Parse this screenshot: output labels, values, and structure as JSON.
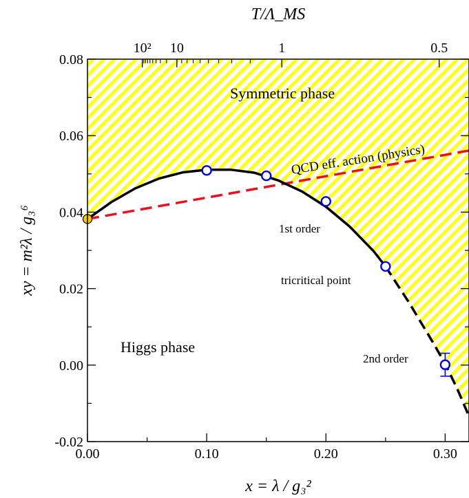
{
  "chart_data": {
    "type": "line",
    "xlabel": "x = λ / g₃²",
    "ylabel": "xy = m²λ / g₃⁶",
    "top_axis_label": "T/Λ_MS",
    "xlim": [
      0.0,
      0.32
    ],
    "ylim": [
      -0.02,
      0.08
    ],
    "x_ticks": [
      0.0,
      0.1,
      0.2,
      0.3
    ],
    "x_tick_labels": [
      "0.00",
      "0.10",
      "0.20",
      "0.30"
    ],
    "y_ticks": [
      -0.02,
      0.0,
      0.02,
      0.04,
      0.06,
      0.08
    ],
    "y_tick_labels": [
      "-0.02",
      "0.00",
      "0.02",
      "0.04",
      "0.06",
      "0.08"
    ],
    "top_ticks": [
      {
        "label": "10²",
        "x": 0.046
      },
      {
        "label": "10",
        "x": 0.075
      },
      {
        "label": "1",
        "x": 0.163
      },
      {
        "label": "0.5",
        "x": 0.295
      }
    ],
    "regions": {
      "symmetric": "Symmetric phase",
      "higgs": "Higgs phase"
    },
    "annotations": {
      "qcd": "QCD eff. action (physics)",
      "first_order": "1st order",
      "tricritical": "tricritical point",
      "second_order": "2nd order"
    },
    "series": [
      {
        "style": "solid-black",
        "x": [
          0.0,
          0.02,
          0.04,
          0.06,
          0.08,
          0.1,
          0.12,
          0.14,
          0.16,
          0.18,
          0.2,
          0.22,
          0.24,
          0.25
        ],
        "y": [
          0.0382,
          0.0426,
          0.0462,
          0.0488,
          0.0504,
          0.0511,
          0.0511,
          0.0503,
          0.0483,
          0.0454,
          0.0414,
          0.0362,
          0.0298,
          0.0258
        ]
      },
      {
        "style": "dashed-black",
        "x": [
          0.25,
          0.27,
          0.29,
          0.3,
          0.31,
          0.32
        ],
        "y": [
          0.0258,
          0.0162,
          0.0058,
          0.0003,
          -0.0061,
          -0.0134
        ]
      },
      {
        "style": "dashed-red",
        "x": [
          0.0,
          0.32
        ],
        "y": [
          0.0382,
          0.0561
        ]
      },
      {
        "style": "markers",
        "x": [
          0.1,
          0.15,
          0.2,
          0.25,
          0.3
        ],
        "y": [
          0.0509,
          0.0495,
          0.0428,
          0.0258,
          0.0001
        ],
        "error": [
          0,
          0,
          0,
          0,
          0.003
        ]
      },
      {
        "style": "endpoint",
        "x": [
          0.0
        ],
        "y": [
          0.0382
        ]
      }
    ],
    "colors": {
      "hatch": "#ffff1e",
      "marker": "#0000ee",
      "qcd_line": "#e8121e",
      "endpoint": "#ffc800"
    }
  }
}
